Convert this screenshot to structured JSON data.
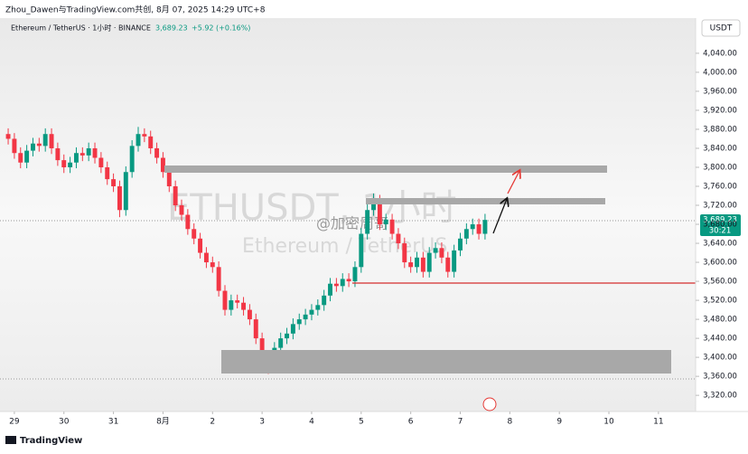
{
  "header": "Zhou_Dawen与TradingView.com共创, 8月 07, 2025 14:29 UTC+8",
  "currency": "USDT",
  "watermark": {
    "symbol": "ETHUSDT, 1小时",
    "description": "Ethereum / TetherUS",
    "author": "@加密周哥"
  },
  "footer": "TradingView",
  "chart_data": {
    "type": "candlestick",
    "title": "Ethereum / TetherUS · 1小时 · BINANCE",
    "last_price_label": "3,689.23",
    "change_label": "+5.92 (+0.16%)",
    "countdown": "30:21",
    "up_color": "#089981",
    "down_color": "#f23645",
    "grid": false,
    "xlim": [
      -0.29,
      13.75
    ],
    "ylim": [
      3286,
      4076
    ],
    "xticks": [
      {
        "value": 0,
        "label": "29"
      },
      {
        "value": 1,
        "label": "30"
      },
      {
        "value": 2,
        "label": "31"
      },
      {
        "value": 3,
        "label": "8月"
      },
      {
        "value": 4,
        "label": "2"
      },
      {
        "value": 5,
        "label": "3"
      },
      {
        "value": 6,
        "label": "4"
      },
      {
        "value": 7,
        "label": "5"
      },
      {
        "value": 8,
        "label": "6"
      },
      {
        "value": 9,
        "label": "7"
      },
      {
        "value": 10,
        "label": "8"
      },
      {
        "value": 11,
        "label": "9"
      },
      {
        "value": 12,
        "label": "10"
      },
      {
        "value": 13,
        "label": "11"
      }
    ],
    "yticks": [
      {
        "value": 3320,
        "label": "3,320.00"
      },
      {
        "value": 3360,
        "label": "3,360.00"
      },
      {
        "value": 3400,
        "label": "3,400.00"
      },
      {
        "value": 3440,
        "label": "3,440.00"
      },
      {
        "value": 3480,
        "label": "3,480.00"
      },
      {
        "value": 3520,
        "label": "3,520.00"
      },
      {
        "value": 3560,
        "label": "3,560.00"
      },
      {
        "value": 3600,
        "label": "3,600.00"
      },
      {
        "value": 3640,
        "label": "3,640.00"
      },
      {
        "value": 3680,
        "label": "3,680.00"
      },
      {
        "value": 3720,
        "label": "3,720.00"
      },
      {
        "value": 3760,
        "label": "3,760.00"
      },
      {
        "value": 3800,
        "label": "3,800.00"
      },
      {
        "value": 3840,
        "label": "3,840.00"
      },
      {
        "value": 3880,
        "label": "3,880.00"
      },
      {
        "value": 3920,
        "label": "3,920.00"
      },
      {
        "value": 3960,
        "label": "3,960.00"
      },
      {
        "value": 4000,
        "label": "4,000.00"
      },
      {
        "value": 4040,
        "label": "4,040.00"
      }
    ],
    "x": [
      -0.125,
      0,
      0.125,
      0.25,
      0.375,
      0.5,
      0.625,
      0.75,
      0.875,
      1,
      1.125,
      1.25,
      1.375,
      1.5,
      1.625,
      1.75,
      1.875,
      2,
      2.125,
      2.25,
      2.375,
      2.5,
      2.625,
      2.75,
      2.875,
      3,
      3.125,
      3.25,
      3.375,
      3.5,
      3.625,
      3.75,
      3.875,
      4,
      4.125,
      4.25,
      4.375,
      4.5,
      4.625,
      4.75,
      4.875,
      5,
      5.125,
      5.25,
      5.375,
      5.5,
      5.625,
      5.75,
      5.875,
      6,
      6.125,
      6.25,
      6.375,
      6.5,
      6.625,
      6.75,
      6.875,
      7,
      7.125,
      7.25,
      7.375,
      7.5,
      7.625,
      7.75,
      7.875,
      8,
      8.125,
      8.25,
      8.375,
      8.5,
      8.625,
      8.75,
      8.875,
      9,
      9.125,
      9.25,
      9.375,
      9.5
    ],
    "open": [
      3870,
      3860,
      3830,
      3810,
      3835,
      3850,
      3845,
      3870,
      3840,
      3815,
      3800,
      3810,
      3830,
      3825,
      3840,
      3820,
      3800,
      3775,
      3760,
      3710,
      3790,
      3845,
      3870,
      3865,
      3840,
      3820,
      3790,
      3760,
      3720,
      3700,
      3670,
      3650,
      3620,
      3600,
      3590,
      3540,
      3500,
      3520,
      3515,
      3500,
      3480,
      3440,
      3400,
      3380,
      3420,
      3440,
      3450,
      3470,
      3480,
      3490,
      3500,
      3510,
      3530,
      3555,
      3550,
      3565,
      3560,
      3590,
      3660,
      3710,
      3730,
      3680,
      3690,
      3660,
      3640,
      3600,
      3590,
      3610,
      3580,
      3620,
      3630,
      3610,
      3580,
      3625,
      3650,
      3670,
      3680,
      3660
    ],
    "high": [
      3882,
      3872,
      3842,
      3847,
      3862,
      3862,
      3882,
      3882,
      3852,
      3827,
      3822,
      3842,
      3842,
      3852,
      3852,
      3832,
      3812,
      3787,
      3772,
      3802,
      3857,
      3885,
      3882,
      3877,
      3852,
      3832,
      3802,
      3772,
      3732,
      3712,
      3682,
      3662,
      3632,
      3612,
      3602,
      3552,
      3532,
      3532,
      3527,
      3512,
      3492,
      3452,
      3412,
      3432,
      3452,
      3462,
      3482,
      3492,
      3502,
      3512,
      3522,
      3542,
      3567,
      3567,
      3577,
      3577,
      3602,
      3672,
      3722,
      3745,
      3742,
      3702,
      3702,
      3672,
      3652,
      3612,
      3622,
      3622,
      3632,
      3642,
      3642,
      3622,
      3637,
      3662,
      3682,
      3692,
      3692,
      3702
    ],
    "low": [
      3848,
      3818,
      3798,
      3798,
      3823,
      3833,
      3833,
      3828,
      3803,
      3788,
      3788,
      3798,
      3813,
      3813,
      3808,
      3788,
      3763,
      3748,
      3695,
      3698,
      3778,
      3833,
      3853,
      3828,
      3808,
      3778,
      3748,
      3708,
      3688,
      3658,
      3638,
      3608,
      3588,
      3578,
      3528,
      3488,
      3488,
      3503,
      3488,
      3468,
      3428,
      3388,
      3365,
      3368,
      3408,
      3428,
      3438,
      3458,
      3468,
      3478,
      3488,
      3498,
      3518,
      3538,
      3538,
      3548,
      3548,
      3578,
      3648,
      3698,
      3668,
      3668,
      3648,
      3628,
      3588,
      3578,
      3578,
      3568,
      3568,
      3608,
      3598,
      3568,
      3568,
      3613,
      3638,
      3658,
      3648,
      3648
    ],
    "close": [
      3860,
      3830,
      3810,
      3835,
      3850,
      3845,
      3870,
      3840,
      3815,
      3800,
      3810,
      3830,
      3825,
      3840,
      3820,
      3800,
      3775,
      3760,
      3710,
      3790,
      3845,
      3870,
      3865,
      3840,
      3820,
      3790,
      3760,
      3720,
      3700,
      3670,
      3650,
      3620,
      3600,
      3590,
      3540,
      3500,
      3520,
      3515,
      3500,
      3480,
      3440,
      3400,
      3380,
      3420,
      3440,
      3450,
      3470,
      3480,
      3490,
      3500,
      3510,
      3530,
      3555,
      3550,
      3565,
      3560,
      3590,
      3660,
      3710,
      3730,
      3680,
      3690,
      3660,
      3640,
      3600,
      3590,
      3610,
      3580,
      3620,
      3630,
      3610,
      3580,
      3625,
      3650,
      3670,
      3680,
      3660,
      3689.23
    ]
  }
}
